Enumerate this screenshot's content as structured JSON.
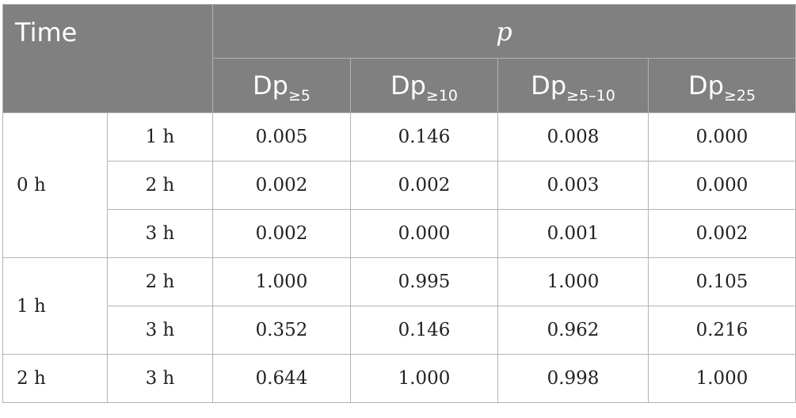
{
  "header": {
    "time_label": "Time",
    "p_label": "p",
    "columns": [
      {
        "base": "Dp",
        "sub": "≥5"
      },
      {
        "base": "Dp",
        "sub": "≥10"
      },
      {
        "base": "Dp",
        "sub": "≥5–10"
      },
      {
        "base": "Dp",
        "sub": "≥25"
      }
    ]
  },
  "groups": [
    {
      "label": "0 h",
      "rows": [
        {
          "time": "1 h",
          "values": [
            "0.005",
            "0.146",
            "0.008",
            "0.000"
          ]
        },
        {
          "time": "2 h",
          "values": [
            "0.002",
            "0.002",
            "0.003",
            "0.000"
          ]
        },
        {
          "time": "3 h",
          "values": [
            "0.002",
            "0.000",
            "0.001",
            "0.002"
          ]
        }
      ]
    },
    {
      "label": "1 h",
      "rows": [
        {
          "time": "2 h",
          "values": [
            "1.000",
            "0.995",
            "1.000",
            "0.105"
          ]
        },
        {
          "time": "3 h",
          "values": [
            "0.352",
            "0.146",
            "0.962",
            "0.216"
          ]
        }
      ]
    },
    {
      "label": "2 h",
      "rows": [
        {
          "time": "3 h",
          "values": [
            "0.644",
            "1.000",
            "0.998",
            "1.000"
          ]
        }
      ]
    }
  ]
}
